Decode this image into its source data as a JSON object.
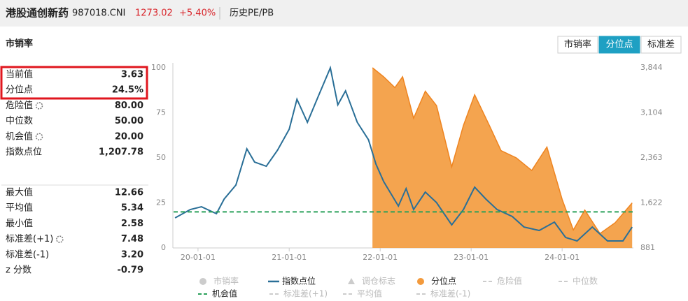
{
  "header": {
    "name": "港股通创新药",
    "code": "987018.CNI",
    "price": "1273.02",
    "change": "+5.40%",
    "tab": "历史PE/PB"
  },
  "section_title": "市销率",
  "stats_top": [
    {
      "label": "当前值",
      "value": "3.63"
    },
    {
      "label": "分位点",
      "value": "24.5%"
    },
    {
      "label": "危险值",
      "value": "80.00"
    },
    {
      "label": "中位数",
      "value": "50.00"
    },
    {
      "label": "机会值",
      "value": "20.00"
    },
    {
      "label": "指数点位",
      "value": "1,207.78"
    }
  ],
  "stats_bottom": [
    {
      "label": "最大值",
      "value": "12.66"
    },
    {
      "label": "平均值",
      "value": "5.34"
    },
    {
      "label": "最小值",
      "value": "2.58"
    },
    {
      "label": "标准差(+1)",
      "value": "7.48"
    },
    {
      "label": "标准差(-1)",
      "value": "3.20"
    },
    {
      "label": "z 分数",
      "value": "-0.79"
    }
  ],
  "tabs": [
    "市销率",
    "分位点",
    "标准差"
  ],
  "active_tab": 1,
  "chart_data": {
    "type": "line",
    "xlim": [
      "19-09-25",
      "24-10-13"
    ],
    "xticks": [
      "20-01-01",
      "21-01-01",
      "22-01-01",
      "23-01-01",
      "24-01-01"
    ],
    "ylim": [
      0,
      100
    ],
    "yticks": [
      0,
      25,
      50,
      75,
      100
    ],
    "y2lim": [
      881,
      3844
    ],
    "y2ticks": [
      881,
      {
        "value": 1622,
        "label": "1,622"
      },
      {
        "value": 2363,
        "label": "2,363"
      },
      {
        "value": 3104,
        "label": "3,104"
      },
      {
        "value": 3844,
        "label": "3,844"
      }
    ],
    "grid": false,
    "series": [
      {
        "name": "指数点位",
        "color": "#2a6f97",
        "axis": "y2",
        "kind": "line",
        "x": [
          "19-10-01",
          "19-12-01",
          "20-01-15",
          "20-03-15",
          "20-04-15",
          "20-06-01",
          "20-07-15",
          "20-08-15",
          "20-10-01",
          "20-11-15",
          "21-01-01",
          "21-02-01",
          "21-03-15",
          "21-05-01",
          "21-06-15",
          "21-07-15",
          "21-08-15",
          "21-10-01",
          "21-11-15",
          "21-12-15",
          "22-01-15",
          "22-03-15",
          "22-04-15",
          "22-05-15",
          "22-07-01",
          "22-08-15",
          "22-10-15",
          "22-12-01",
          "23-01-15",
          "23-03-01",
          "23-04-15",
          "23-06-15",
          "23-08-01",
          "23-10-01",
          "23-12-01",
          "24-01-15",
          "24-03-01",
          "24-05-01",
          "24-07-01",
          "24-09-01",
          "24-10-08"
        ],
        "values": [
          1375,
          1512,
          1558,
          1444,
          1685,
          1914,
          2511,
          2293,
          2224,
          2488,
          2833,
          3326,
          2947,
          3407,
          3843,
          3234,
          3464,
          2947,
          2660,
          2259,
          1972,
          1570,
          1857,
          1512,
          1799,
          1627,
          1260,
          1512,
          1880,
          1685,
          1512,
          1398,
          1225,
          1168,
          1306,
          1053,
          996,
          1225,
          996,
          996,
          1225
        ]
      },
      {
        "name": "分位点",
        "color": "#f39a3c",
        "axis": "y",
        "kind": "area",
        "x": [
          "21-12-01",
          "22-01-15",
          "22-03-01",
          "22-04-01",
          "22-05-15",
          "22-07-01",
          "22-08-15",
          "22-10-15",
          "22-12-01",
          "23-01-15",
          "23-03-15",
          "23-05-01",
          "23-07-01",
          "23-09-01",
          "23-11-01",
          "24-01-01",
          "24-02-15",
          "24-04-01",
          "24-06-01",
          "24-08-01",
          "24-10-08"
        ],
        "values": [
          100,
          95,
          89,
          95,
          72,
          87,
          79,
          45,
          68,
          85,
          68,
          54,
          50,
          43,
          56,
          27,
          10,
          21,
          8,
          14,
          25
        ]
      }
    ],
    "hlines": [
      {
        "name": "机会值",
        "value": 20,
        "color": "#2aa05a"
      }
    ],
    "legend": [
      {
        "name": "市销率",
        "color": "#cccccc",
        "marker": "circle",
        "active": false
      },
      {
        "name": "指数点位",
        "color": "#2a6f97",
        "marker": "line",
        "active": true
      },
      {
        "name": "调仓标志",
        "color": "#cccccc",
        "marker": "triangle",
        "active": false
      },
      {
        "name": "分位点",
        "color": "#f39a3c",
        "marker": "circle",
        "active": true
      },
      {
        "name": "危险值",
        "color": "#cccccc",
        "marker": "dash",
        "active": false
      },
      {
        "name": "中位数",
        "color": "#cccccc",
        "marker": "dash",
        "active": false
      },
      {
        "name": "机会值",
        "color": "#2aa05a",
        "marker": "dash",
        "active": true
      },
      {
        "name": "标准差(+1)",
        "color": "#cccccc",
        "marker": "dash",
        "active": false
      },
      {
        "name": "平均值",
        "color": "#cccccc",
        "marker": "dash",
        "active": false
      },
      {
        "name": "标准差(-1)",
        "color": "#cccccc",
        "marker": "dash",
        "active": false
      }
    ]
  }
}
